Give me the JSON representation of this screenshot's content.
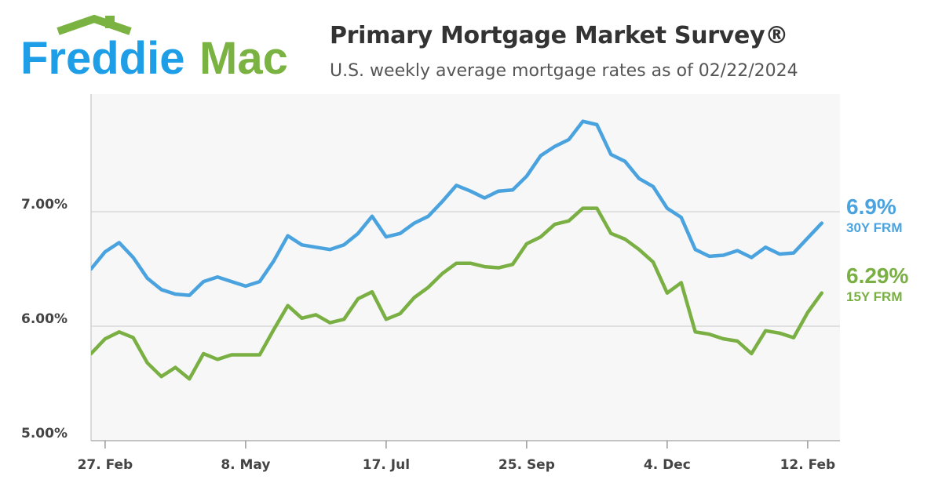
{
  "brand": {
    "word1": "Freddie",
    "word2": "Mac",
    "blue": "#1e9ee6",
    "green": "#7bb342"
  },
  "header": {
    "title": "Primary Mortgage Market Survey®",
    "subtitle": "U.S. weekly average mortgage rates as of 02/22/2024"
  },
  "callouts": {
    "frm30": {
      "value": "6.9%",
      "label": "30Y FRM"
    },
    "frm15": {
      "value": "6.29%",
      "label": "15Y FRM"
    }
  },
  "chart_data": {
    "type": "line",
    "title": "",
    "xlabel": "",
    "ylabel": "",
    "ylim": [
      5.0,
      8.0
    ],
    "yticks": [
      {
        "value": 5.0,
        "label": "5.00%"
      },
      {
        "value": 6.0,
        "label": "6.00%"
      },
      {
        "value": 7.0,
        "label": "7.00%"
      }
    ],
    "grid": true,
    "xticks": [
      {
        "index": 1,
        "label": "27. Feb"
      },
      {
        "index": 11,
        "label": "8. May"
      },
      {
        "index": 21,
        "label": "17. Jul"
      },
      {
        "index": 31,
        "label": "25. Sep"
      },
      {
        "index": 41,
        "label": "4. Dec"
      },
      {
        "index": 51,
        "label": "12. Feb"
      }
    ],
    "x": [
      "2023-02-23",
      "2023-03-02",
      "2023-03-09",
      "2023-03-16",
      "2023-03-23",
      "2023-03-30",
      "2023-04-06",
      "2023-04-13",
      "2023-04-20",
      "2023-04-27",
      "2023-05-04",
      "2023-05-11",
      "2023-05-18",
      "2023-05-25",
      "2023-06-01",
      "2023-06-08",
      "2023-06-15",
      "2023-06-22",
      "2023-06-29",
      "2023-07-06",
      "2023-07-13",
      "2023-07-20",
      "2023-07-27",
      "2023-08-03",
      "2023-08-10",
      "2023-08-17",
      "2023-08-24",
      "2023-08-31",
      "2023-09-07",
      "2023-09-14",
      "2023-09-21",
      "2023-09-28",
      "2023-10-05",
      "2023-10-12",
      "2023-10-19",
      "2023-10-26",
      "2023-11-02",
      "2023-11-09",
      "2023-11-16",
      "2023-11-22",
      "2023-11-30",
      "2023-12-07",
      "2023-12-14",
      "2023-12-21",
      "2023-12-28",
      "2024-01-04",
      "2024-01-11",
      "2024-01-18",
      "2024-01-25",
      "2024-02-01",
      "2024-02-08",
      "2024-02-15",
      "2024-02-22"
    ],
    "series": [
      {
        "name": "30Y FRM",
        "color": "#4aa3df",
        "values": [
          6.5,
          6.65,
          6.73,
          6.6,
          6.42,
          6.32,
          6.28,
          6.27,
          6.39,
          6.43,
          6.39,
          6.35,
          6.39,
          6.57,
          6.79,
          6.71,
          6.69,
          6.67,
          6.71,
          6.81,
          6.96,
          6.78,
          6.81,
          6.9,
          6.96,
          7.09,
          7.23,
          7.18,
          7.12,
          7.18,
          7.19,
          7.31,
          7.49,
          7.57,
          7.63,
          7.79,
          7.76,
          7.5,
          7.44,
          7.29,
          7.22,
          7.03,
          6.95,
          6.67,
          6.61,
          6.62,
          6.66,
          6.6,
          6.69,
          6.63,
          6.64,
          6.77,
          6.9
        ]
      },
      {
        "name": "15Y FRM",
        "color": "#7ab043",
        "values": [
          5.76,
          5.89,
          5.95,
          5.9,
          5.68,
          5.56,
          5.64,
          5.54,
          5.76,
          5.71,
          5.75,
          5.75,
          5.75,
          5.97,
          6.18,
          6.07,
          6.1,
          6.03,
          6.06,
          6.24,
          6.3,
          6.06,
          6.11,
          6.25,
          6.34,
          6.46,
          6.55,
          6.55,
          6.52,
          6.51,
          6.54,
          6.72,
          6.78,
          6.89,
          6.92,
          7.03,
          7.03,
          6.81,
          6.76,
          6.67,
          6.56,
          6.29,
          6.38,
          5.95,
          5.93,
          5.89,
          5.87,
          5.76,
          5.96,
          5.94,
          5.9,
          6.12,
          6.29
        ]
      }
    ]
  }
}
